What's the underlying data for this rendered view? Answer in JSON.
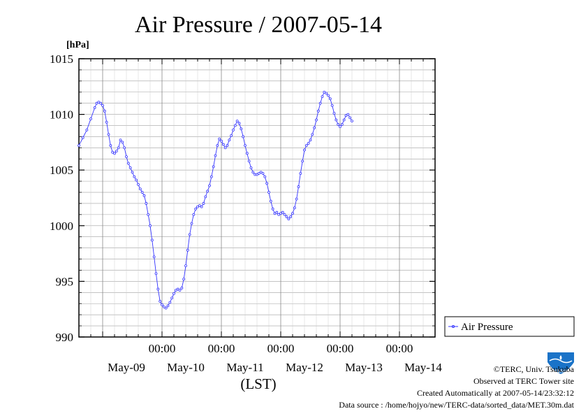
{
  "colors": {
    "series": "#3333ff",
    "grid": "#a0a0a0",
    "axis": "#000000",
    "logo": "#1a73c8"
  },
  "chart_data": {
    "type": "line",
    "title": "Air Pressure / 2007-05-14",
    "ylabel": "[hPa]",
    "xlabel": "(LST)",
    "ylim": [
      990,
      1015
    ],
    "yticks": [
      990,
      995,
      1000,
      1005,
      1010,
      1015
    ],
    "xlim_hours": [
      -12,
      168
    ],
    "grid": true,
    "legend_position": "right",
    "x_time_ticks": [
      {
        "hour": 30,
        "label": "00:00"
      },
      {
        "hour": 60,
        "label": "00:00"
      },
      {
        "hour": 90,
        "label": "00:00"
      },
      {
        "hour": 120,
        "label": "00:00"
      },
      {
        "hour": 150,
        "label": "00:00"
      }
    ],
    "x_date_labels": [
      {
        "hour": 12,
        "label": "May-09"
      },
      {
        "hour": 42,
        "label": "May-10"
      },
      {
        "hour": 72,
        "label": "May-11"
      },
      {
        "hour": 102,
        "label": "May-12"
      },
      {
        "hour": 132,
        "label": "May-13"
      },
      {
        "hour": 162,
        "label": "May-14"
      }
    ],
    "series": [
      {
        "name": "Air Pressure",
        "points": [
          [
            -12,
            1007.2
          ],
          [
            -10,
            1007.9
          ],
          [
            -8,
            1008.6
          ],
          [
            -6,
            1009.6
          ],
          [
            -4,
            1010.6
          ],
          [
            -3,
            1011.0
          ],
          [
            -2,
            1011.1
          ],
          [
            -1,
            1011.0
          ],
          [
            0,
            1010.8
          ],
          [
            1,
            1010.3
          ],
          [
            2,
            1009.3
          ],
          [
            3,
            1008.2
          ],
          [
            4,
            1007.2
          ],
          [
            5,
            1006.6
          ],
          [
            6,
            1006.5
          ],
          [
            7,
            1006.7
          ],
          [
            8,
            1007.0
          ],
          [
            9,
            1007.7
          ],
          [
            10,
            1007.5
          ],
          [
            11,
            1007.0
          ],
          [
            12,
            1006.2
          ],
          [
            13,
            1005.6
          ],
          [
            14,
            1005.2
          ],
          [
            15,
            1004.8
          ],
          [
            16,
            1004.4
          ],
          [
            17,
            1004.1
          ],
          [
            18,
            1003.7
          ],
          [
            19,
            1003.3
          ],
          [
            20,
            1003.0
          ],
          [
            21,
            1002.7
          ],
          [
            22,
            1002.0
          ],
          [
            23,
            1001.0
          ],
          [
            24,
            1000.0
          ],
          [
            25,
            998.7
          ],
          [
            26,
            997.2
          ],
          [
            27,
            995.7
          ],
          [
            28,
            994.3
          ],
          [
            29,
            993.2
          ],
          [
            30,
            992.9
          ],
          [
            31,
            992.7
          ],
          [
            32,
            992.6
          ],
          [
            33,
            992.8
          ],
          [
            34,
            993.1
          ],
          [
            35,
            993.5
          ],
          [
            36,
            993.9
          ],
          [
            37,
            994.2
          ],
          [
            38,
            994.3
          ],
          [
            39,
            994.2
          ],
          [
            40,
            994.4
          ],
          [
            41,
            995.2
          ],
          [
            42,
            996.4
          ],
          [
            43,
            997.8
          ],
          [
            44,
            999.2
          ],
          [
            45,
            1000.2
          ],
          [
            46,
            1001.0
          ],
          [
            47,
            1001.5
          ],
          [
            48,
            1001.7
          ],
          [
            49,
            1001.8
          ],
          [
            50,
            1001.7
          ],
          [
            51,
            1002.0
          ],
          [
            52,
            1002.6
          ],
          [
            53,
            1003.1
          ],
          [
            54,
            1003.6
          ],
          [
            55,
            1004.4
          ],
          [
            56,
            1005.3
          ],
          [
            57,
            1006.3
          ],
          [
            58,
            1007.2
          ],
          [
            59,
            1007.8
          ],
          [
            60,
            1007.6
          ],
          [
            61,
            1007.3
          ],
          [
            62,
            1007.0
          ],
          [
            63,
            1007.2
          ],
          [
            64,
            1007.7
          ],
          [
            65,
            1008.1
          ],
          [
            66,
            1008.6
          ],
          [
            67,
            1009.0
          ],
          [
            68,
            1009.4
          ],
          [
            69,
            1009.2
          ],
          [
            70,
            1008.7
          ],
          [
            71,
            1008.0
          ],
          [
            72,
            1007.2
          ],
          [
            73,
            1006.5
          ],
          [
            74,
            1005.8
          ],
          [
            75,
            1005.2
          ],
          [
            76,
            1004.8
          ],
          [
            77,
            1004.6
          ],
          [
            78,
            1004.6
          ],
          [
            79,
            1004.7
          ],
          [
            80,
            1004.8
          ],
          [
            81,
            1004.7
          ],
          [
            82,
            1004.4
          ],
          [
            83,
            1003.8
          ],
          [
            84,
            1003.0
          ],
          [
            85,
            1002.2
          ],
          [
            86,
            1001.5
          ],
          [
            87,
            1001.1
          ],
          [
            88,
            1001.2
          ],
          [
            89,
            1001.0
          ],
          [
            90,
            1001.1
          ],
          [
            91,
            1001.2
          ],
          [
            92,
            1001.0
          ],
          [
            93,
            1000.8
          ],
          [
            94,
            1000.6
          ],
          [
            95,
            1000.8
          ],
          [
            96,
            1001.1
          ],
          [
            97,
            1001.6
          ],
          [
            98,
            1002.4
          ],
          [
            99,
            1003.5
          ],
          [
            100,
            1004.7
          ],
          [
            101,
            1005.8
          ],
          [
            102,
            1006.8
          ],
          [
            103,
            1007.2
          ],
          [
            104,
            1007.4
          ],
          [
            105,
            1007.7
          ],
          [
            106,
            1008.2
          ],
          [
            107,
            1008.8
          ],
          [
            108,
            1009.5
          ],
          [
            109,
            1010.3
          ],
          [
            110,
            1011.0
          ],
          [
            111,
            1011.6
          ],
          [
            112,
            1012.0
          ],
          [
            113,
            1011.9
          ],
          [
            114,
            1011.7
          ],
          [
            115,
            1011.4
          ],
          [
            116,
            1010.8
          ],
          [
            117,
            1010.1
          ],
          [
            118,
            1009.5
          ],
          [
            119,
            1009.1
          ],
          [
            120,
            1008.9
          ],
          [
            121,
            1009.1
          ],
          [
            122,
            1009.5
          ],
          [
            123,
            1009.9
          ],
          [
            124,
            1010.0
          ],
          [
            125,
            1009.7
          ],
          [
            126,
            1009.4
          ]
        ]
      }
    ]
  },
  "footer": {
    "copyright": "©TERC, Univ. Tsukuba",
    "observed": "Observed at TERC Tower site",
    "created": "Created Automatically at 2007-05-14/23:32:12",
    "source": "Data source : /home/hojyo/new/TERC-data/sorted_data/MET.30m.dat"
  },
  "logo": {
    "text": "TERC"
  }
}
